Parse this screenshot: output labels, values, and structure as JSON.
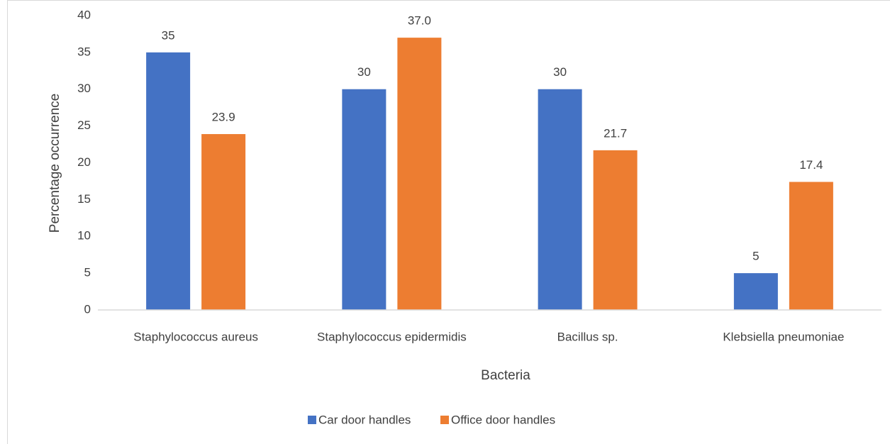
{
  "chart_data": {
    "type": "bar",
    "x_label": "Bacteria",
    "y_label": "Percentage occurrence",
    "categories": [
      "Staphylococcus aureus",
      "Staphylococcus epidermidis",
      "Bacillus sp.",
      "Klebsiella pneumoniae"
    ],
    "series": [
      {
        "name": "Car door handles",
        "color": "#4472c4",
        "values": [
          35,
          30,
          30,
          5
        ]
      },
      {
        "name": "Office door handles",
        "color": "#ed7d31",
        "values": [
          23.9,
          37.0,
          21.7,
          17.4
        ],
        "value_labels": [
          "23.9",
          "37.0",
          "21.7",
          "17.4"
        ]
      }
    ],
    "ylim": [
      0,
      40
    ],
    "yticks": [
      0,
      5,
      10,
      15,
      20,
      25,
      30,
      35,
      40
    ],
    "grid": false,
    "legend": "bottom"
  }
}
